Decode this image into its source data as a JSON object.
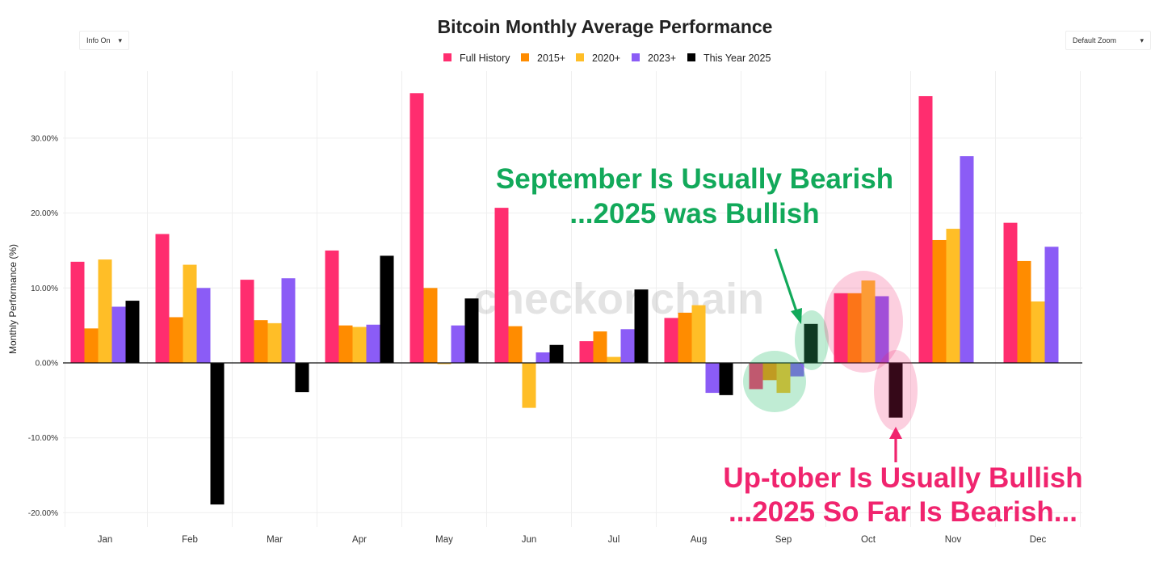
{
  "controls": {
    "info_label": "Info On",
    "zoom_label": "Default Zoom",
    "arrow_glyph": "▾"
  },
  "watermark": "checkonchain",
  "chart_data": {
    "type": "bar",
    "title": "Bitcoin Monthly Average Performance",
    "xlabel": "",
    "ylabel": "Monthly Performance (%)",
    "ylim": [
      -23,
      38
    ],
    "yticks": [
      -20,
      -10,
      0,
      10,
      20,
      30
    ],
    "ytick_labels": [
      "-20.00%",
      "-10.00%",
      "0.00%",
      "10.00%",
      "20.00%",
      "30.00%"
    ],
    "legend_position": "top-center",
    "categories": [
      "Jan",
      "Feb",
      "Mar",
      "Apr",
      "May",
      "Jun",
      "Jul",
      "Aug",
      "Sep",
      "Oct",
      "Nov",
      "Dec"
    ],
    "series": [
      {
        "name": "Full History",
        "color": "#ff2d6f",
        "values": [
          13.5,
          17.2,
          11.1,
          15.0,
          36.0,
          20.7,
          2.9,
          6.0,
          -3.5,
          9.3,
          35.6,
          18.7
        ]
      },
      {
        "name": "2015+",
        "color": "#ff8c00",
        "values": [
          4.6,
          6.1,
          5.7,
          5.0,
          10.0,
          4.9,
          4.2,
          6.7,
          -2.3,
          9.3,
          16.4,
          13.6
        ]
      },
      {
        "name": "2020+",
        "color": "#ffbe27",
        "values": [
          13.8,
          13.1,
          5.3,
          4.8,
          0.0,
          -6.0,
          0.8,
          7.7,
          -4.0,
          11.0,
          17.9,
          8.2
        ]
      },
      {
        "name": "2023+",
        "color": "#8b5cf6",
        "values": [
          7.5,
          10.0,
          11.3,
          5.1,
          5.0,
          1.4,
          4.5,
          -4.0,
          -1.8,
          8.9,
          27.6,
          15.5
        ]
      },
      {
        "name": "This Year 2025",
        "color": "#000000",
        "values": [
          8.3,
          -18.9,
          -3.9,
          14.3,
          8.6,
          2.4,
          9.8,
          -4.3,
          5.2,
          -7.3,
          null,
          null
        ]
      }
    ],
    "legend_labels": [
      "Full History",
      "2015+",
      "2020+",
      "2023+",
      "This Year 2025"
    ],
    "annotations": {
      "september_line1": "September Is Usually Bearish",
      "september_line2": "...2025 was Bullish",
      "october_line1": "Up-tober Is Usually Bullish",
      "october_line2": "...2025 So Far Is Bearish...",
      "green_color": "#12a95a",
      "pink_color": "#f0246e"
    }
  }
}
